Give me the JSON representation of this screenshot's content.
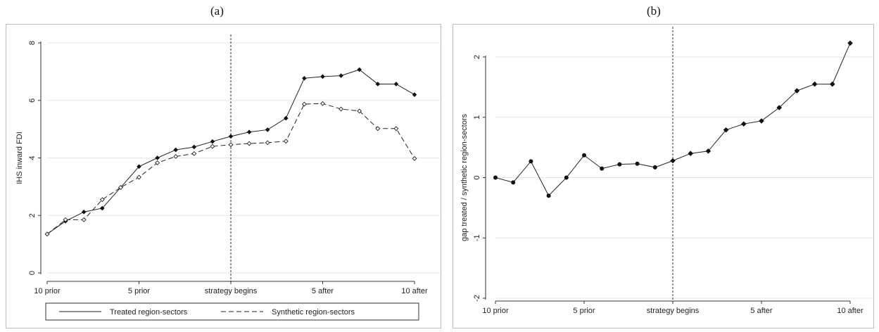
{
  "panels": [
    {
      "label": "(a)"
    },
    {
      "label": "(b)"
    }
  ],
  "chart_data": [
    {
      "type": "line",
      "title": "(a)",
      "xlabel": "",
      "ylabel": "IHS inward FDI",
      "x": [
        -10,
        -9,
        -8,
        -7,
        -6,
        -5,
        -4,
        -3,
        -2,
        -1,
        0,
        1,
        2,
        3,
        4,
        5,
        6,
        7,
        8,
        9,
        10
      ],
      "xticks": [
        {
          "x": -10,
          "label": "10 prior"
        },
        {
          "x": -5,
          "label": "5 prior"
        },
        {
          "x": 0,
          "label": "strategy begins"
        },
        {
          "x": 5,
          "label": "5 after"
        },
        {
          "x": 10,
          "label": "10 after"
        }
      ],
      "xlim": [
        -10,
        10
      ],
      "ylim": [
        0,
        8
      ],
      "yticks": [
        0,
        2,
        4,
        6,
        8
      ],
      "grid": true,
      "vline": 0,
      "series": [
        {
          "name": "Treated region-sectors",
          "style": "solid",
          "marker": "filled-diamond",
          "values": [
            1.35,
            1.8,
            2.12,
            2.25,
            2.97,
            3.7,
            4.0,
            4.28,
            4.38,
            4.57,
            4.75,
            4.9,
            4.98,
            5.38,
            6.77,
            6.83,
            6.86,
            7.07,
            6.57,
            6.57,
            6.2
          ]
        },
        {
          "name": "Synthetic region-sectors",
          "style": "dashed",
          "marker": "hollow-diamond",
          "values": [
            1.35,
            1.85,
            1.85,
            2.55,
            2.97,
            3.33,
            3.83,
            4.05,
            4.15,
            4.4,
            4.46,
            4.5,
            4.53,
            4.58,
            5.87,
            5.89,
            5.7,
            5.63,
            5.02,
            5.02,
            3.98
          ]
        }
      ],
      "legend": "bottom"
    },
    {
      "type": "line",
      "title": "(b)",
      "xlabel": "",
      "ylabel": "gap treated / synthetic region-sectors",
      "x": [
        -10,
        -9,
        -8,
        -7,
        -6,
        -5,
        -4,
        -3,
        -2,
        -1,
        0,
        1,
        2,
        3,
        4,
        5,
        6,
        7,
        8,
        9,
        10
      ],
      "xticks": [
        {
          "x": -10,
          "label": "10 prior"
        },
        {
          "x": -5,
          "label": "5 prior"
        },
        {
          "x": 0,
          "label": "strategy begins"
        },
        {
          "x": 5,
          "label": "5 after"
        },
        {
          "x": 10,
          "label": "10 after"
        }
      ],
      "xlim": [
        -10,
        10
      ],
      "ylim": [
        -2,
        2
      ],
      "yticks": [
        -2,
        -1,
        0,
        1,
        2
      ],
      "grid": true,
      "vline": 0,
      "series": [
        {
          "marker": "circle-before-diamond-after",
          "values": [
            0.0,
            -0.08,
            0.27,
            -0.3,
            0.0,
            0.37,
            0.15,
            0.22,
            0.23,
            0.17,
            0.28,
            0.4,
            0.44,
            0.79,
            0.89,
            0.94,
            1.16,
            1.44,
            1.55,
            1.55,
            2.23
          ]
        }
      ]
    }
  ]
}
